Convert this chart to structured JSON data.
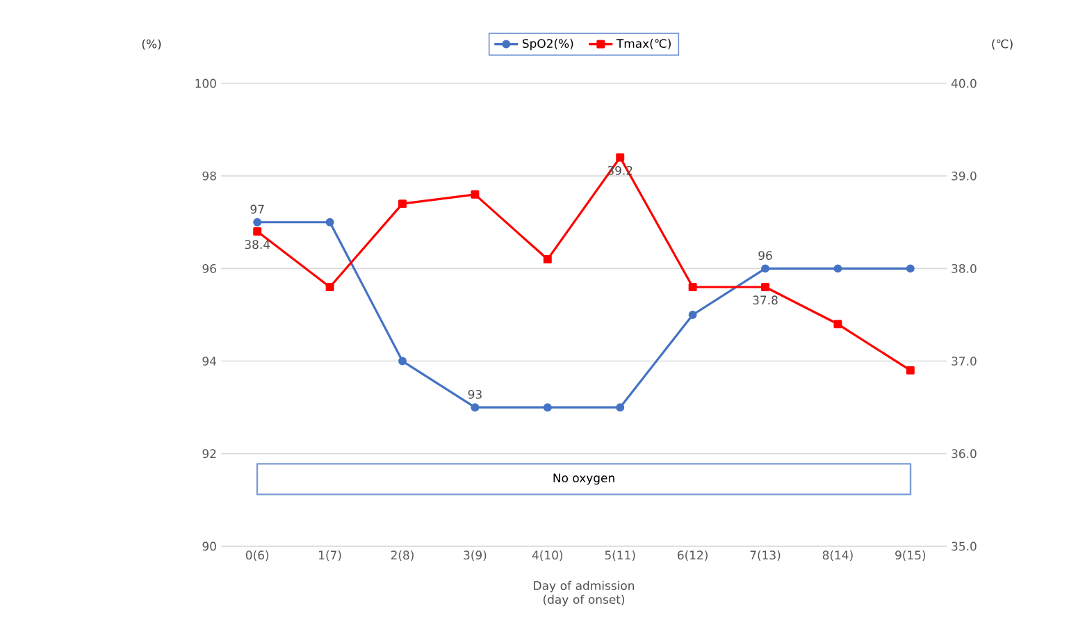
{
  "chart_data": {
    "type": "line",
    "xlabel": "Day of  admission (day of onset)",
    "ylabel": "(%)",
    "y2label": "(℃)",
    "categories": [
      "0(6)",
      "1(7)",
      "2(8)",
      "3(9)",
      "4(10)",
      "5(11)",
      "6(12)",
      "7(13)",
      "8(14)",
      "9(15)"
    ],
    "series": [
      {
        "name": "SpO2(%)",
        "color": "#4472c4",
        "marker": "circle",
        "values": [
          97,
          97,
          94,
          93,
          93,
          93,
          95,
          96,
          96,
          96
        ],
        "value_labels": [
          "97",
          null,
          null,
          "93",
          null,
          null,
          null,
          "96",
          null,
          null
        ]
      },
      {
        "name": "Tmax(℃)",
        "color": "#ff0000",
        "marker": "square",
        "axis": "y2",
        "values": [
          38.4,
          37.8,
          38.7,
          38.8,
          38.1,
          39.2,
          37.8,
          37.8,
          37.4,
          36.9
        ],
        "value_labels": [
          "38.4",
          null,
          null,
          null,
          null,
          "39.2",
          null,
          "37.8",
          null,
          null
        ]
      }
    ],
    "ylim": [
      90,
      100
    ],
    "yticks": [
      90,
      92,
      94,
      96,
      98,
      100
    ],
    "y2lim": [
      35,
      40
    ],
    "y2ticks": [
      {
        "value": 35,
        "label": "35.0"
      },
      {
        "value": 36,
        "label": "36.0"
      },
      {
        "value": 37,
        "label": "37.0"
      },
      {
        "value": 38,
        "label": "38.0"
      },
      {
        "value": 39,
        "label": "39.0"
      },
      {
        "value": 40,
        "label": "40.0"
      }
    ],
    "grid": "y",
    "legend": "top",
    "annotations": [
      "No oxygen"
    ]
  }
}
